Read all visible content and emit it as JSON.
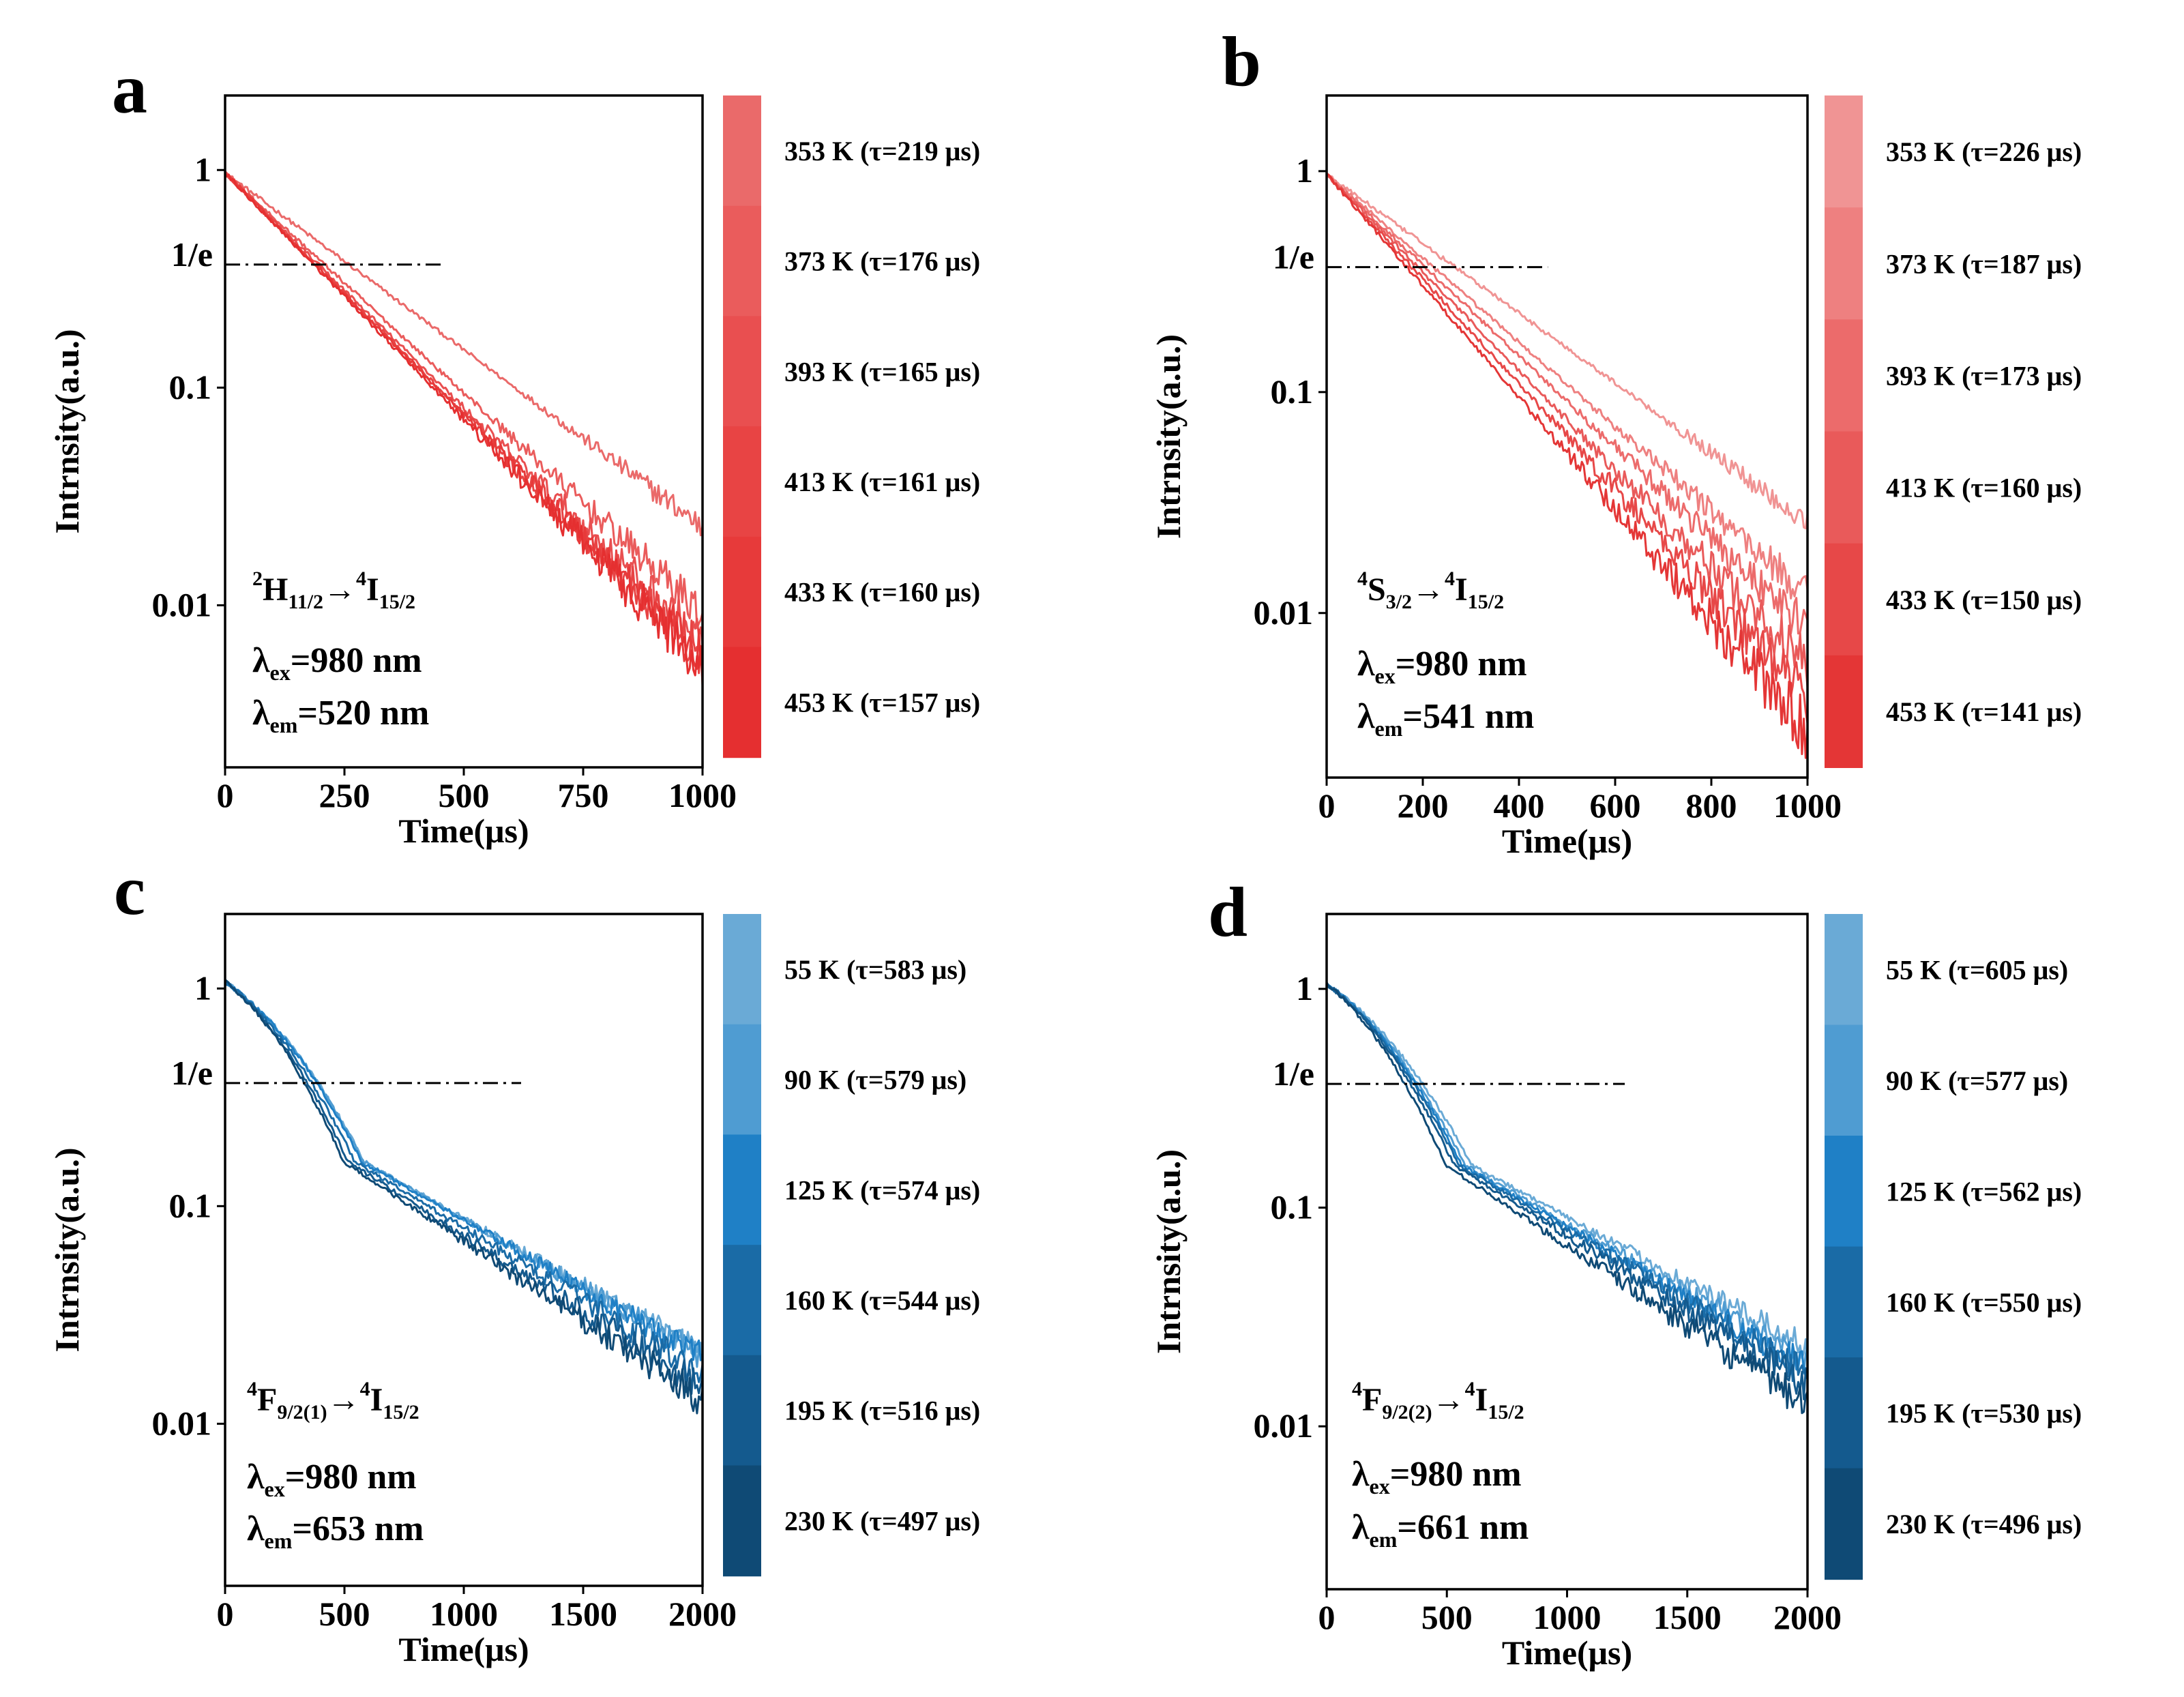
{
  "chart_data": [
    {
      "panel": "a",
      "type": "line",
      "xlabel": "Time(μs)",
      "ylabel": "Intrnsity(a.u.)",
      "xlim": [
        0,
        1000
      ],
      "ylim": [
        0.0018,
        2.2
      ],
      "xticks": [
        "0",
        "250",
        "500",
        "750",
        "1000"
      ],
      "yticks": [
        "1",
        "0.1",
        "0.01"
      ],
      "yscale": "log",
      "ref_label": "1/e",
      "transition": {
        "upper": "H",
        "upper_sup": "2",
        "upper_sub": "11/2",
        "arrow": "→",
        "lower": "I",
        "lower_sup": "4",
        "lower_sub": "15/2"
      },
      "lambda_ex": {
        "sym": "λ",
        "sub": "ex",
        "value": "=980 nm"
      },
      "lambda_em": {
        "sym": "λ",
        "sub": "em",
        "value": "=520 nm"
      },
      "series": [
        {
          "name": "353 K (τ=219 μs)",
          "temperature_K": 353,
          "tau_us": 219,
          "color": "#ea6a6a"
        },
        {
          "name": "373 K (τ=176 μs)",
          "temperature_K": 373,
          "tau_us": 176,
          "color": "#ea5c5c"
        },
        {
          "name": "393 K (τ=165 μs)",
          "temperature_K": 393,
          "tau_us": 165,
          "color": "#e94f50"
        },
        {
          "name": "413 K (τ=161 μs)",
          "temperature_K": 413,
          "tau_us": 161,
          "color": "#e84444"
        },
        {
          "name": "433 K (τ=160 μs)",
          "temperature_K": 433,
          "tau_us": 160,
          "color": "#e73a3a"
        },
        {
          "name": "453 K (τ=157 μs)",
          "temperature_K": 453,
          "tau_us": 157,
          "color": "#e52f30"
        }
      ]
    },
    {
      "panel": "b",
      "type": "line",
      "xlabel": "Time(μs)",
      "ylabel": "Intrnsity(a.u.)",
      "xlim": [
        0,
        1000
      ],
      "ylim": [
        0.0018,
        2.2
      ],
      "xticks": [
        "0",
        "200",
        "400",
        "600",
        "800",
        "1000"
      ],
      "yticks": [
        "1",
        "0.1",
        "0.01"
      ],
      "yscale": "log",
      "ref_label": "1/e",
      "transition": {
        "upper": "S",
        "upper_sup": "4",
        "upper_sub": "3/2",
        "arrow": "→",
        "lower": "I",
        "lower_sup": "4",
        "lower_sub": "15/2"
      },
      "lambda_ex": {
        "sym": "λ",
        "sub": "ex",
        "value": "=980 nm"
      },
      "lambda_em": {
        "sym": "λ",
        "sub": "em",
        "value": "=541 nm"
      },
      "series": [
        {
          "name": "353 K (τ=226 μs)",
          "temperature_K": 353,
          "tau_us": 226,
          "color": "#f09494"
        },
        {
          "name": "373 K (τ=187 μs)",
          "temperature_K": 373,
          "tau_us": 187,
          "color": "#ee8080"
        },
        {
          "name": "393 K (τ=173 μs)",
          "temperature_K": 393,
          "tau_us": 173,
          "color": "#ec6b6b"
        },
        {
          "name": "413 K (τ=160 μs)",
          "temperature_K": 413,
          "tau_us": 160,
          "color": "#e95a5a"
        },
        {
          "name": "433 K (τ=150 μs)",
          "temperature_K": 433,
          "tau_us": 150,
          "color": "#e74848"
        },
        {
          "name": "453 K (τ=141 μs)",
          "temperature_K": 453,
          "tau_us": 141,
          "color": "#e43636"
        }
      ]
    },
    {
      "panel": "c",
      "type": "line",
      "xlabel": "Time(μs)",
      "ylabel": "Intrnsity(a.u.)",
      "xlim": [
        0,
        2000
      ],
      "ylim": [
        0.0018,
        2.2
      ],
      "xticks": [
        "0",
        "500",
        "1000",
        "1500",
        "2000"
      ],
      "yticks": [
        "1",
        "0.1",
        "0.01"
      ],
      "yscale": "log",
      "ref_label": "1/e",
      "transition": {
        "upper": "F",
        "upper_sup": "4",
        "upper_sub": "9/2(1)",
        "arrow": "→",
        "lower": "I",
        "lower_sup": "4",
        "lower_sub": "15/2"
      },
      "lambda_ex": {
        "sym": "λ",
        "sub": "ex",
        "value": "=980 nm"
      },
      "lambda_em": {
        "sym": "λ",
        "sub": "em",
        "value": "=653 nm"
      },
      "series": [
        {
          "name": "55   K (τ=583 μs)",
          "temperature_K": 55,
          "tau_us": 583,
          "color": "#6aaad6"
        },
        {
          "name": "90   K (τ=579 μs)",
          "temperature_K": 90,
          "tau_us": 579,
          "color": "#4f9cd2"
        },
        {
          "name": "125 K (τ=574 μs)",
          "temperature_K": 125,
          "tau_us": 574,
          "color": "#1f80c6"
        },
        {
          "name": "160 K (τ=544 μs)",
          "temperature_K": 160,
          "tau_us": 544,
          "color": "#1a6ba6"
        },
        {
          "name": "195 K (τ=516 μs)",
          "temperature_K": 195,
          "tau_us": 516,
          "color": "#145a8e"
        },
        {
          "name": "230 K (τ=497 μs)",
          "temperature_K": 230,
          "tau_us": 497,
          "color": "#0f4a75"
        }
      ]
    },
    {
      "panel": "d",
      "type": "line",
      "xlabel": "Time(μs)",
      "ylabel": "Intrnsity(a.u.)",
      "xlim": [
        0,
        2000
      ],
      "ylim": [
        0.0018,
        2.2
      ],
      "xticks": [
        "0",
        "500",
        "1000",
        "1500",
        "2000"
      ],
      "yticks": [
        "1",
        "0.1",
        "0.01"
      ],
      "yscale": "log",
      "ref_label": "1/e",
      "transition": {
        "upper": "F",
        "upper_sup": "4",
        "upper_sub": "9/2(2)",
        "arrow": "→",
        "lower": "I",
        "lower_sup": "4",
        "lower_sub": "15/2"
      },
      "lambda_ex": {
        "sym": "λ",
        "sub": "ex",
        "value": "=980 nm"
      },
      "lambda_em": {
        "sym": "λ",
        "sub": "em",
        "value": "=661 nm"
      },
      "series": [
        {
          "name": "55   K (τ=605 μs)",
          "temperature_K": 55,
          "tau_us": 605,
          "color": "#6aaad6"
        },
        {
          "name": "90   K (τ=577 μs)",
          "temperature_K": 90,
          "tau_us": 577,
          "color": "#4f9cd2"
        },
        {
          "name": "125 K (τ=562 μs)",
          "temperature_K": 125,
          "tau_us": 562,
          "color": "#1f80c6"
        },
        {
          "name": "160 K (τ=550 μs)",
          "temperature_K": 160,
          "tau_us": 550,
          "color": "#1a6ba6"
        },
        {
          "name": "195 K (τ=530 μs)",
          "temperature_K": 195,
          "tau_us": 530,
          "color": "#145a8e"
        },
        {
          "name": "230 K (τ=496 μs)",
          "temperature_K": 230,
          "tau_us": 496,
          "color": "#0f4a75"
        }
      ]
    }
  ]
}
